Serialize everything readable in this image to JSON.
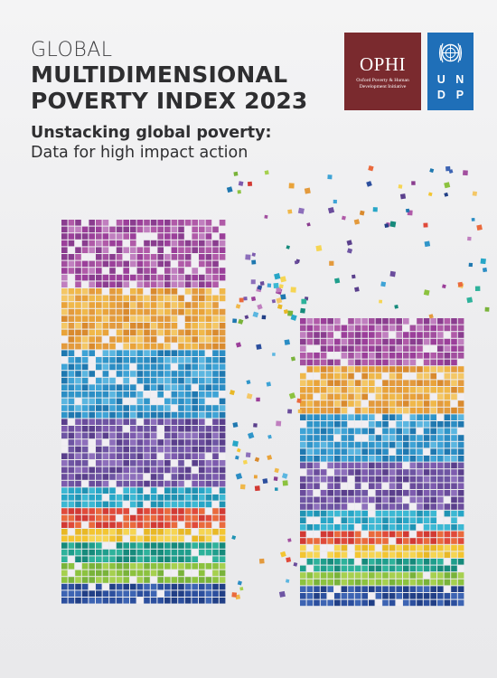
{
  "title_block": {
    "kicker": "GLOBAL",
    "title_line1": "MULTIDIMENSIONAL",
    "title_line2": "POVERTY INDEX 2023",
    "subtitle": "Unstacking global poverty:",
    "subtitle2": "Data for high impact action"
  },
  "logos": {
    "ophi": {
      "name": "OPHI",
      "subtitle": "Oxford Poverty & Human Development Initiative",
      "color": "#7a2a2e"
    },
    "undp": {
      "letters": [
        "U",
        "N",
        "D",
        "P"
      ],
      "color": "#1f6fb8",
      "icon": "un-emblem-icon"
    }
  },
  "mosaic": {
    "palette": {
      "purple": [
        "#9b3f9a",
        "#b05aa8",
        "#8a3d8f",
        "#c07fbf",
        "#a24f9f"
      ],
      "orange": [
        "#e9a33a",
        "#f0b84a",
        "#d98a2e",
        "#f4c766",
        "#e39a3d"
      ],
      "blue": [
        "#2b8dc4",
        "#3ea3d6",
        "#1f78b0",
        "#5bb6e0",
        "#2f95c9"
      ],
      "violet": [
        "#6a4c9c",
        "#7d5bae",
        "#5a3f8c",
        "#8d6fbb",
        "#6e55a3"
      ],
      "cyan": [
        "#27a6c7",
        "#3cb8d3",
        "#1f93b3"
      ],
      "red": [
        "#e04a3a",
        "#ea6a3d",
        "#d23a34"
      ],
      "yellow": [
        "#f3c531",
        "#f6d553",
        "#e8b826"
      ],
      "teal": [
        "#1f9e8c",
        "#2eb29b",
        "#168a7b"
      ],
      "green": [
        "#8cc23f",
        "#a6d04f",
        "#79b33a"
      ],
      "navy": [
        "#2c4f9e",
        "#3d64b3",
        "#213f86"
      ]
    }
  }
}
